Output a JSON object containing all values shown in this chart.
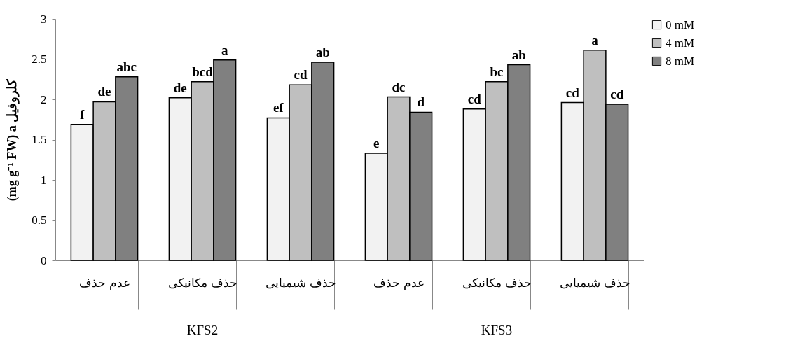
{
  "chart_data": {
    "type": "bar",
    "ylabel": "(mg g⁻¹ FW) a کلروفیل",
    "categories": [
      "عدم حذف",
      "حذف مکانیکی",
      "حذف شیمیایی",
      "عدم حذف",
      "حذف مکانیکی",
      "حذف شیمیایی"
    ],
    "series": [
      {
        "name": "0 mM",
        "color": "#f2f2f2",
        "values": [
          1.69,
          2.02,
          1.77,
          1.33,
          1.88,
          1.96
        ],
        "value_labels": [
          "f",
          "de",
          "ef",
          "e",
          "cd",
          "cd"
        ]
      },
      {
        "name": "4 mM",
        "color": "#bfbfbf",
        "values": [
          1.97,
          2.22,
          2.18,
          2.03,
          2.22,
          2.61
        ],
        "value_labels": [
          "de",
          "bcd",
          "cd",
          "dc",
          "bc",
          "a"
        ]
      },
      {
        "name": "8 mM",
        "color": "#808080",
        "values": [
          2.28,
          2.49,
          2.46,
          1.84,
          2.43,
          1.94
        ],
        "value_labels": [
          "abc",
          "a",
          "ab",
          "d",
          "ab",
          "cd"
        ]
      }
    ],
    "annotations": [
      "KFS2",
      "KFS3"
    ],
    "ylim": [
      0,
      3
    ],
    "yticks": [
      0,
      0.5,
      1,
      1.5,
      2,
      2.5,
      3
    ],
    "grid": false,
    "legend": "right"
  }
}
